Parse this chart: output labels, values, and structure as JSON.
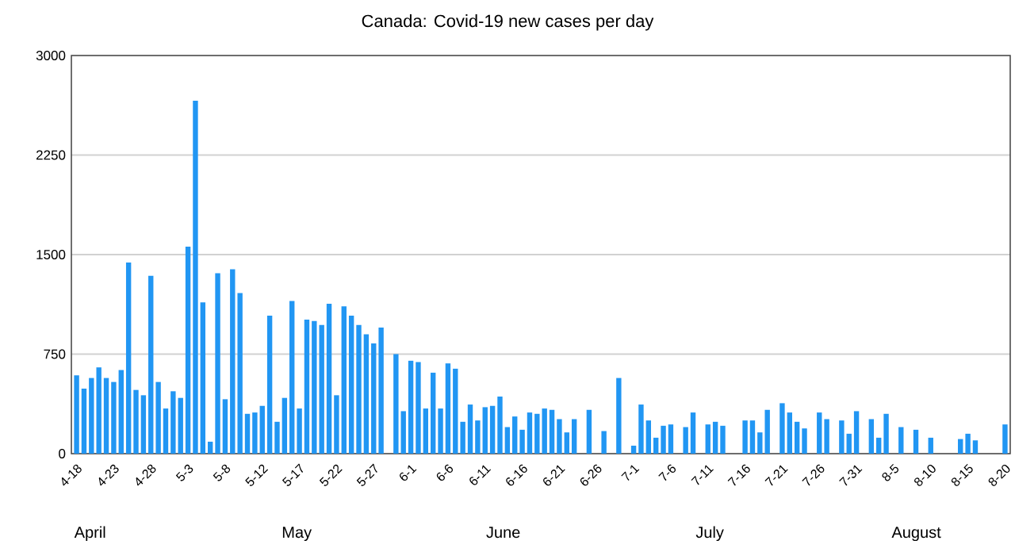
{
  "chart_data": {
    "type": "bar",
    "title": "Canada: Covid-19 new cases per day",
    "categories": [
      "4-18",
      null,
      null,
      null,
      null,
      "4-23",
      null,
      null,
      null,
      null,
      "4-28",
      null,
      null,
      null,
      null,
      "5-3",
      null,
      null,
      null,
      null,
      "5-8",
      null,
      null,
      null,
      null,
      "5-12",
      null,
      null,
      null,
      null,
      "5-17",
      null,
      null,
      null,
      null,
      "5-22",
      null,
      null,
      null,
      null,
      "5-27",
      null,
      null,
      null,
      null,
      "6-1",
      null,
      null,
      null,
      null,
      "6-6",
      null,
      null,
      null,
      null,
      "6-11",
      null,
      null,
      null,
      null,
      "6-16",
      null,
      null,
      null,
      null,
      "6-21",
      null,
      null,
      null,
      null,
      "6-26",
      null,
      null,
      null,
      null,
      "7-1",
      null,
      null,
      null,
      null,
      "7-6",
      null,
      null,
      null,
      null,
      "7-11",
      null,
      null,
      null,
      null,
      "7-16",
      null,
      null,
      null,
      null,
      "7-21",
      null,
      null,
      null,
      null,
      "7-26",
      null,
      null,
      null,
      null,
      "7-31",
      null,
      null,
      null,
      null,
      "8-5",
      null,
      null,
      null,
      null,
      "8-10",
      null,
      null,
      null,
      null,
      "8-15",
      null,
      null,
      null,
      null,
      "8-20"
    ],
    "values": [
      590,
      490,
      570,
      650,
      570,
      540,
      630,
      1440,
      480,
      440,
      1340,
      540,
      340,
      470,
      420,
      1560,
      2660,
      1140,
      90,
      1360,
      410,
      1390,
      1210,
      300,
      310,
      360,
      1040,
      240,
      420,
      1150,
      340,
      1010,
      1000,
      970,
      1130,
      440,
      1110,
      1040,
      970,
      900,
      830,
      950,
      null,
      750,
      320,
      700,
      690,
      340,
      610,
      340,
      680,
      640,
      240,
      370,
      250,
      350,
      360,
      430,
      200,
      280,
      180,
      310,
      300,
      340,
      330,
      260,
      160,
      260,
      null,
      330,
      null,
      170,
      null,
      570,
      null,
      60,
      370,
      250,
      120,
      210,
      220,
      null,
      200,
      310,
      null,
      220,
      240,
      210,
      null,
      null,
      250,
      250,
      160,
      330,
      null,
      380,
      310,
      240,
      190,
      null,
      310,
      260,
      null,
      250,
      150,
      320,
      null,
      260,
      120,
      300,
      null,
      200,
      null,
      180,
      null,
      120,
      null,
      null,
      null,
      110,
      150,
      100,
      null,
      null,
      null,
      220
    ],
    "color": "#2196f3",
    "ylim": [
      0,
      3000
    ],
    "yticks": [
      0,
      750,
      1500,
      2250,
      3000
    ],
    "grid": "y",
    "annotations": [
      "April",
      "May",
      "June",
      "July",
      "August"
    ]
  }
}
